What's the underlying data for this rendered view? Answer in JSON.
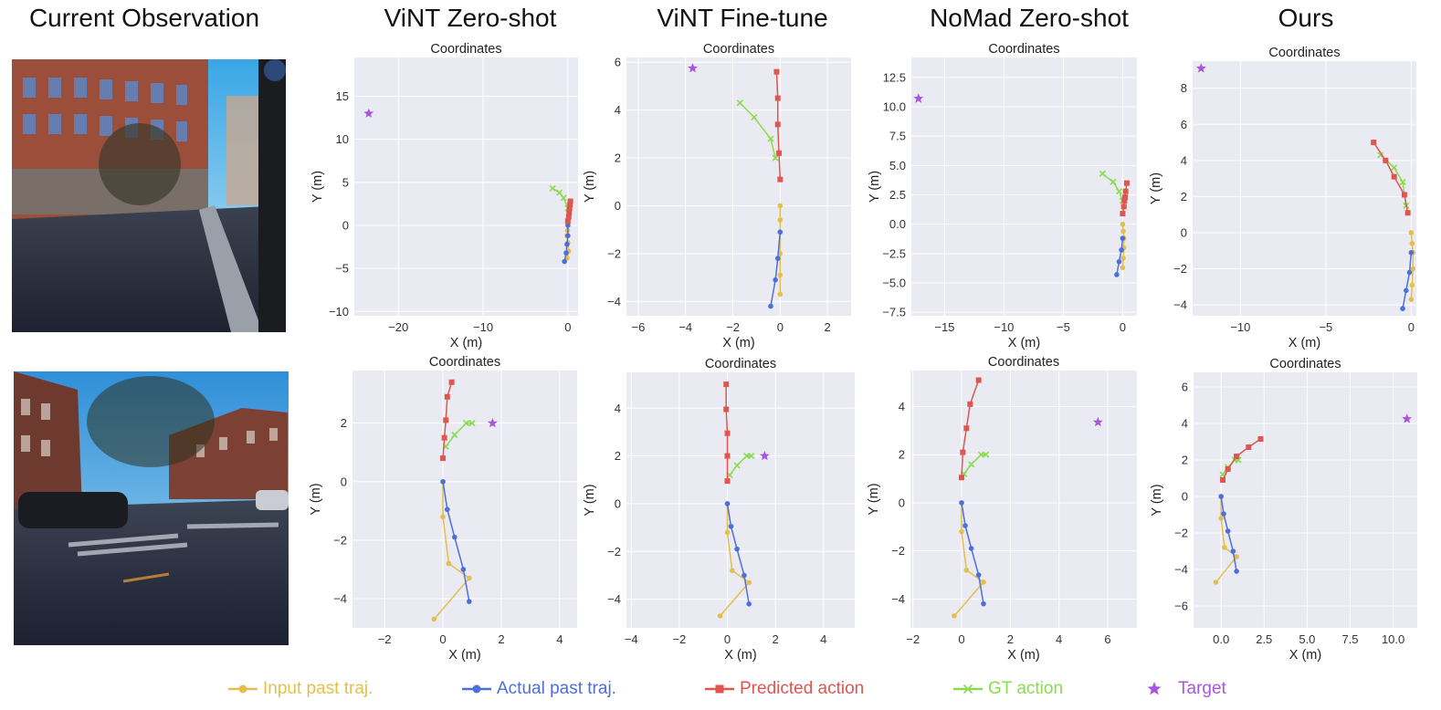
{
  "column_titles": [
    "Current Observation",
    "ViNT Zero-shot",
    "ViNT Fine-tune",
    "NoMad Zero-shot",
    "Ours"
  ],
  "observations": [
    {
      "label": "observation-row-1",
      "scene": "urban street with brick buildings and crosswalk"
    },
    {
      "label": "observation-row-2",
      "scene": "street intersection with parked cars and trees"
    }
  ],
  "legend": [
    {
      "key": "input",
      "label": "Input past traj.",
      "marker": "circle"
    },
    {
      "key": "actual",
      "label": "Actual past traj.",
      "marker": "circle"
    },
    {
      "key": "pred",
      "label": "Predicted action",
      "marker": "square"
    },
    {
      "key": "gt",
      "label": "GT action",
      "marker": "x"
    },
    {
      "key": "target",
      "label": "Target",
      "marker": "star"
    }
  ],
  "colors": {
    "input": "#e3bf4e",
    "actual": "#4c6fdc",
    "pred": "#dd5750",
    "gt": "#88dc4f",
    "target": "#a955dc",
    "plot_bg": "#eaeaf2",
    "grid": "#ffffff"
  },
  "chart_data": [
    {
      "type": "line",
      "title": "Coordinates",
      "xlabel": "X (m)",
      "ylabel": "Y (m)",
      "xlim": [
        -25.2,
        1.2
      ],
      "ylim": [
        -10.5,
        19.5
      ],
      "xticks": [
        -20,
        -10,
        0
      ],
      "yticks": [
        -10,
        -5,
        0,
        5,
        10,
        15
      ],
      "series": {
        "input": [
          [
            0,
            0
          ],
          [
            -0.05,
            -0.6
          ],
          [
            -0.1,
            -1.2
          ],
          [
            0,
            -2
          ],
          [
            0.1,
            -3
          ],
          [
            -0.1,
            -3.8
          ]
        ],
        "actual": [
          [
            0,
            0
          ],
          [
            0,
            -1.2
          ],
          [
            -0.1,
            -2.2
          ],
          [
            -0.2,
            -3.2
          ],
          [
            -0.4,
            -4.2
          ]
        ],
        "pred": [
          [
            0,
            0.5
          ],
          [
            0.1,
            1.0
          ],
          [
            0.15,
            1.5
          ],
          [
            0.2,
            2.0
          ],
          [
            0.25,
            2.4
          ],
          [
            0.3,
            2.8
          ]
        ],
        "gt": [
          [
            0,
            2
          ],
          [
            -0.5,
            3.2
          ],
          [
            -1,
            3.8
          ],
          [
            -1.8,
            4.3
          ]
        ],
        "target": [
          [
            -23.5,
            13
          ]
        ]
      }
    },
    {
      "type": "line",
      "title": "Coordinates",
      "xlabel": "X (m)",
      "ylabel": "Y (m)",
      "xlim": [
        -6.5,
        3.0
      ],
      "ylim": [
        -4.6,
        6.2
      ],
      "xticks": [
        -6,
        -4,
        -2,
        0,
        2
      ],
      "yticks": [
        -4,
        -2,
        0,
        2,
        4,
        6
      ],
      "series": {
        "input": [
          [
            0,
            0
          ],
          [
            0,
            -0.6
          ],
          [
            0,
            -1.1
          ],
          [
            0,
            -2.0
          ],
          [
            0,
            -2.9
          ],
          [
            0,
            -3.7
          ]
        ],
        "actual": [
          [
            0,
            -1.1
          ],
          [
            -0.1,
            -2.2
          ],
          [
            -0.2,
            -3.1
          ],
          [
            -0.4,
            -4.2
          ]
        ],
        "pred": [
          [
            0,
            1.1
          ],
          [
            -0.05,
            2.2
          ],
          [
            -0.1,
            3.4
          ],
          [
            -0.1,
            4.5
          ],
          [
            -0.15,
            5.6
          ]
        ],
        "gt": [
          [
            -0.2,
            2.0
          ],
          [
            -0.4,
            2.8
          ],
          [
            -1.1,
            3.7
          ],
          [
            -1.7,
            4.3
          ]
        ],
        "target": [
          [
            -3.7,
            5.75
          ]
        ]
      }
    },
    {
      "type": "line",
      "title": "Coordinates",
      "xlabel": "X (m)",
      "ylabel": "Y (m)",
      "xlim": [
        -17.8,
        1.2
      ],
      "ylim": [
        -7.8,
        14.2
      ],
      "xticks": [
        -15,
        -10,
        -5,
        0
      ],
      "yticks": [
        -7.5,
        -5.0,
        -2.5,
        0.0,
        2.5,
        5.0,
        7.5,
        10.0,
        12.5
      ],
      "series": {
        "input": [
          [
            0,
            0
          ],
          [
            0.05,
            -0.6
          ],
          [
            0.1,
            -1.2
          ],
          [
            0.1,
            -2.0
          ],
          [
            0.05,
            -2.9
          ],
          [
            0,
            -3.7
          ]
        ],
        "actual": [
          [
            0,
            -1.2
          ],
          [
            -0.1,
            -2.2
          ],
          [
            -0.3,
            -3.2
          ],
          [
            -0.5,
            -4.3
          ]
        ],
        "pred": [
          [
            0,
            0.9
          ],
          [
            0.1,
            1.5
          ],
          [
            0.15,
            2.0
          ],
          [
            0.2,
            2.3
          ],
          [
            0.25,
            2.8
          ],
          [
            0.35,
            3.5
          ]
        ],
        "gt": [
          [
            0,
            2.0
          ],
          [
            -0.3,
            2.8
          ],
          [
            -0.8,
            3.6
          ],
          [
            -1.7,
            4.3
          ]
        ],
        "target": [
          [
            -17.2,
            10.7
          ]
        ]
      }
    },
    {
      "type": "line",
      "title": "Coordinates",
      "xlabel": "X (m)",
      "ylabel": "Y (m)",
      "xlim": [
        -12.8,
        0.3
      ],
      "ylim": [
        -4.6,
        9.5
      ],
      "xticks": [
        -10,
        -5,
        0
      ],
      "yticks": [
        -4,
        -2,
        0,
        2,
        4,
        6,
        8
      ],
      "series": {
        "input": [
          [
            0,
            0
          ],
          [
            0.05,
            -0.6
          ],
          [
            0.1,
            -1.1
          ],
          [
            0.1,
            -2.0
          ],
          [
            0.05,
            -2.9
          ],
          [
            0,
            -3.7
          ]
        ],
        "actual": [
          [
            0,
            -1.1
          ],
          [
            -0.1,
            -2.2
          ],
          [
            -0.3,
            -3.2
          ],
          [
            -0.5,
            -4.2
          ]
        ],
        "pred": [
          [
            -0.2,
            1.1
          ],
          [
            -0.4,
            2.1
          ],
          [
            -1.0,
            3.1
          ],
          [
            -1.5,
            4.0
          ],
          [
            -2.2,
            5.0
          ]
        ],
        "gt": [
          [
            -0.3,
            1.5
          ],
          [
            -0.5,
            2.8
          ],
          [
            -1.0,
            3.6
          ],
          [
            -1.8,
            4.3
          ]
        ],
        "target": [
          [
            -12.3,
            9.1
          ]
        ]
      }
    },
    {
      "type": "line",
      "title": "Coordinates",
      "xlabel": "X (m)",
      "ylabel": "Y (m)",
      "xlim": [
        -3.1,
        4.6
      ],
      "ylim": [
        -5.0,
        3.8
      ],
      "xticks": [
        -2,
        0,
        2,
        4
      ],
      "yticks": [
        -4,
        -2,
        0,
        2
      ],
      "series": {
        "input": [
          [
            0,
            0
          ],
          [
            0,
            -1.2
          ],
          [
            0.2,
            -2.8
          ],
          [
            0.9,
            -3.3
          ],
          [
            -0.3,
            -4.7
          ]
        ],
        "actual": [
          [
            0,
            0
          ],
          [
            0.15,
            -0.95
          ],
          [
            0.4,
            -1.9
          ],
          [
            0.7,
            -3.0
          ],
          [
            0.9,
            -4.1
          ]
        ],
        "pred": [
          [
            0,
            0.8
          ],
          [
            0.05,
            1.5
          ],
          [
            0.1,
            2.1
          ],
          [
            0.15,
            2.9
          ],
          [
            0.3,
            3.4
          ]
        ],
        "gt": [
          [
            0.1,
            1.2
          ],
          [
            0.4,
            1.6
          ],
          [
            0.8,
            2.0
          ],
          [
            1.0,
            2.0
          ]
        ],
        "target": [
          [
            1.7,
            2.0
          ]
        ]
      }
    },
    {
      "type": "line",
      "title": "Coordinates",
      "xlabel": "X (m)",
      "ylabel": "Y (m)",
      "xlim": [
        -4.2,
        5.3
      ],
      "ylim": [
        -5.2,
        5.5
      ],
      "xticks": [
        -4,
        -2,
        0,
        2,
        4
      ],
      "yticks": [
        -4,
        -2,
        0,
        2,
        4
      ],
      "series": {
        "input": [
          [
            0,
            0
          ],
          [
            0,
            -1.2
          ],
          [
            0.2,
            -2.8
          ],
          [
            0.9,
            -3.3
          ],
          [
            -0.3,
            -4.7
          ]
        ],
        "actual": [
          [
            0,
            0
          ],
          [
            0.15,
            -0.95
          ],
          [
            0.4,
            -1.9
          ],
          [
            0.7,
            -3.0
          ],
          [
            0.9,
            -4.2
          ]
        ],
        "pred": [
          [
            0,
            0.95
          ],
          [
            0,
            2.0
          ],
          [
            0,
            2.95
          ],
          [
            -0.05,
            3.95
          ],
          [
            -0.05,
            5.0
          ]
        ],
        "gt": [
          [
            0.1,
            1.2
          ],
          [
            0.4,
            1.6
          ],
          [
            0.8,
            2.0
          ],
          [
            1.0,
            2.0
          ]
        ],
        "target": [
          [
            1.55,
            2.0
          ]
        ]
      }
    },
    {
      "type": "line",
      "title": "Coordinates",
      "xlabel": "X (m)",
      "ylabel": "Y (m)",
      "xlim": [
        -2.1,
        7.2
      ],
      "ylim": [
        -5.2,
        5.5
      ],
      "xticks": [
        -2,
        0,
        2,
        4,
        6
      ],
      "yticks": [
        -4,
        -2,
        0,
        2,
        4
      ],
      "series": {
        "input": [
          [
            0,
            0
          ],
          [
            0,
            -1.2
          ],
          [
            0.2,
            -2.8
          ],
          [
            0.9,
            -3.3
          ],
          [
            -0.3,
            -4.7
          ]
        ],
        "actual": [
          [
            0,
            0
          ],
          [
            0.15,
            -0.95
          ],
          [
            0.4,
            -1.9
          ],
          [
            0.7,
            -3.0
          ],
          [
            0.9,
            -4.2
          ]
        ],
        "pred": [
          [
            0,
            1.05
          ],
          [
            0.05,
            2.1
          ],
          [
            0.2,
            3.1
          ],
          [
            0.35,
            4.1
          ],
          [
            0.7,
            5.1
          ]
        ],
        "gt": [
          [
            0.1,
            1.2
          ],
          [
            0.4,
            1.6
          ],
          [
            0.8,
            2.0
          ],
          [
            1.0,
            2.0
          ]
        ],
        "target": [
          [
            5.6,
            3.35
          ]
        ]
      }
    },
    {
      "type": "line",
      "title": "Coordinates",
      "xlabel": "X (m)",
      "ylabel": "Y (m)",
      "xlim": [
        -1.6,
        11.4
      ],
      "ylim": [
        -7.2,
        6.8
      ],
      "xticks": [
        0,
        2.5,
        5,
        7.5,
        10
      ],
      "yticks": [
        -6,
        -4,
        -2,
        0,
        2,
        4,
        6
      ],
      "tickfmt": 1,
      "series": {
        "input": [
          [
            0,
            0
          ],
          [
            0,
            -1.2
          ],
          [
            0.2,
            -2.8
          ],
          [
            0.9,
            -3.3
          ],
          [
            -0.3,
            -4.7
          ]
        ],
        "actual": [
          [
            0,
            0
          ],
          [
            0.15,
            -0.95
          ],
          [
            0.4,
            -1.9
          ],
          [
            0.7,
            -3.0
          ],
          [
            0.9,
            -4.1
          ]
        ],
        "pred": [
          [
            0.1,
            0.9
          ],
          [
            0.4,
            1.5
          ],
          [
            0.9,
            2.2
          ],
          [
            1.6,
            2.7
          ],
          [
            2.3,
            3.15
          ]
        ],
        "gt": [
          [
            0.1,
            1.2
          ],
          [
            0.4,
            1.6
          ],
          [
            0.8,
            2.0
          ],
          [
            1.0,
            2.0
          ]
        ],
        "target": [
          [
            10.8,
            4.25
          ]
        ]
      }
    }
  ]
}
